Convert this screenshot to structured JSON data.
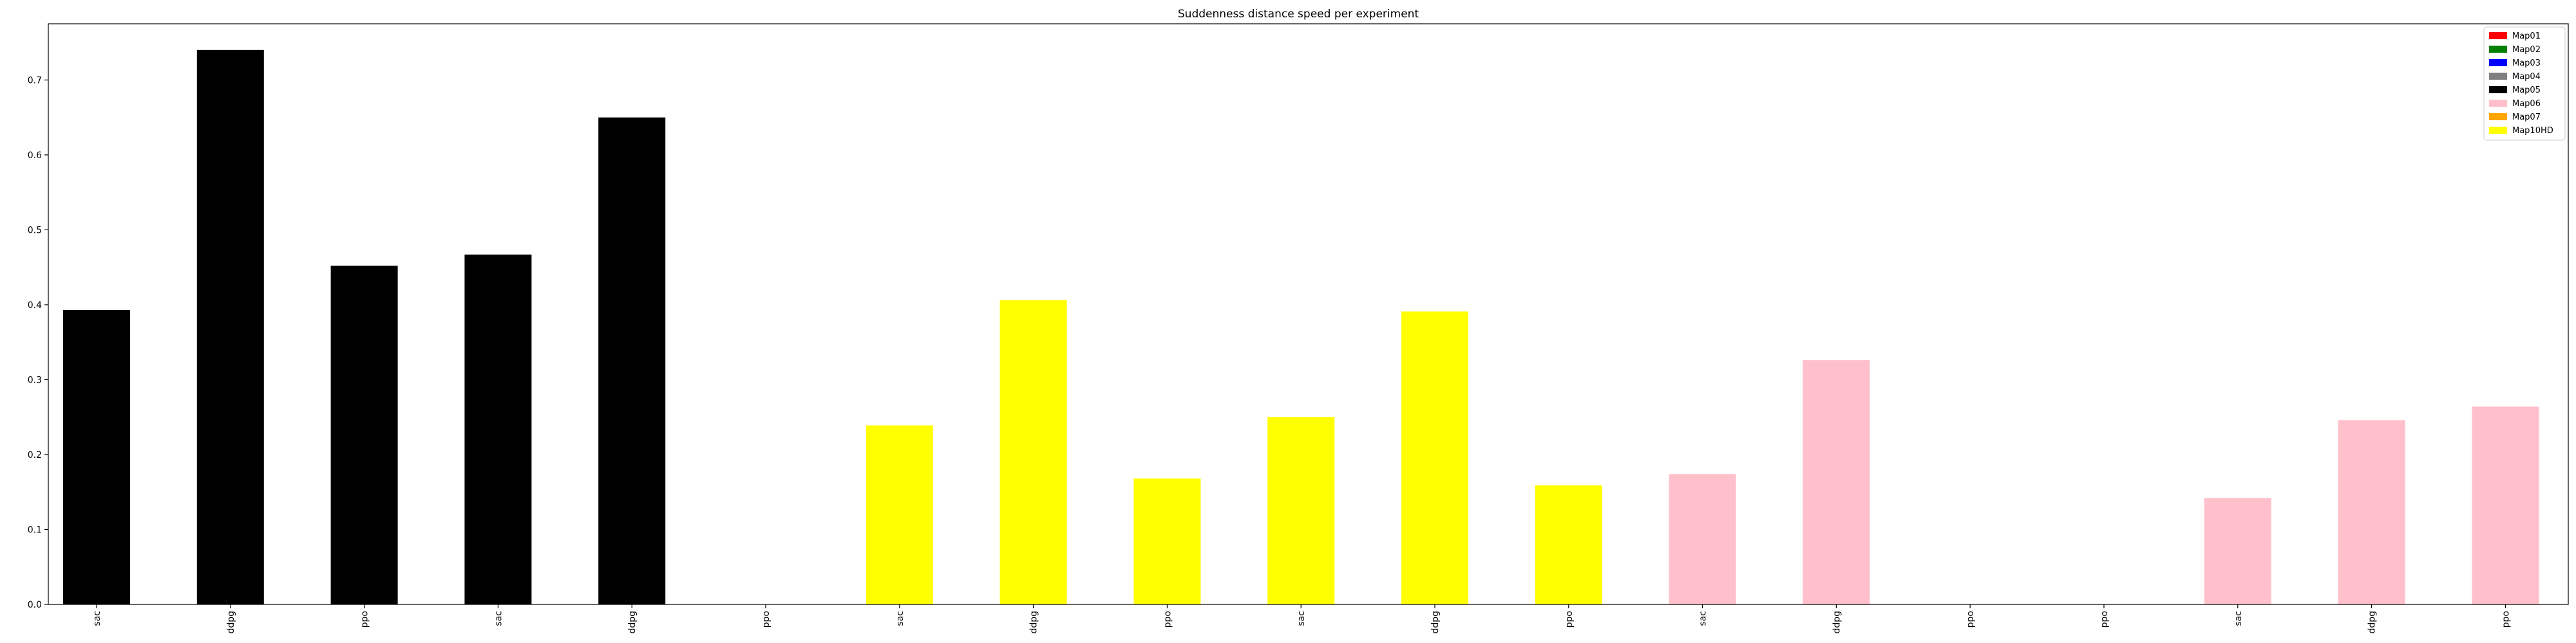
{
  "chart_data": {
    "type": "bar",
    "title": "Suddenness distance speed per experiment",
    "xlabel": "",
    "ylabel": "",
    "ylim": [
      0,
      0.775
    ],
    "yticks": [
      0.0,
      0.1,
      0.2,
      0.3,
      0.4,
      0.5,
      0.6,
      0.7
    ],
    "ytick_labels": [
      "0.0",
      "0.1",
      "0.2",
      "0.3",
      "0.4",
      "0.5",
      "0.6",
      "0.7"
    ],
    "grid": false,
    "legend_position": "top-right",
    "legend": [
      {
        "label": "Map01",
        "color": "#ff0000"
      },
      {
        "label": "Map02",
        "color": "#008000"
      },
      {
        "label": "Map03",
        "color": "#0000ff"
      },
      {
        "label": "Map04",
        "color": "#808080"
      },
      {
        "label": "Map05",
        "color": "#000000"
      },
      {
        "label": "Map06",
        "color": "#ffc0cb"
      },
      {
        "label": "Map07",
        "color": "#ffa500"
      },
      {
        "label": "Map10HD",
        "color": "#ffff00"
      }
    ],
    "categories": [
      "sac",
      "ddpg",
      "ppo",
      "sac",
      "ddpg",
      "ppo",
      "sac",
      "ddpg",
      "ppo",
      "sac",
      "ddpg",
      "ppo",
      "sac",
      "ddpg",
      "ppo",
      "ppo",
      "sac",
      "ddpg",
      "ppo"
    ],
    "values": [
      0.393,
      0.74,
      0.452,
      0.467,
      0.65,
      0,
      0.239,
      0.406,
      0.168,
      0.25,
      0.391,
      0.159,
      0.174,
      0.326,
      0,
      0,
      0.142,
      0.246,
      0.264
    ],
    "bar_colors": [
      "#000000",
      "#000000",
      "#000000",
      "#000000",
      "#000000",
      "#000000",
      "#ffff00",
      "#ffff00",
      "#ffff00",
      "#ffff00",
      "#ffff00",
      "#ffff00",
      "#ffc0cb",
      "#ffc0cb",
      "#ffc0cb",
      "#ffc0cb",
      "#ffc0cb",
      "#ffc0cb",
      "#ffc0cb"
    ]
  }
}
